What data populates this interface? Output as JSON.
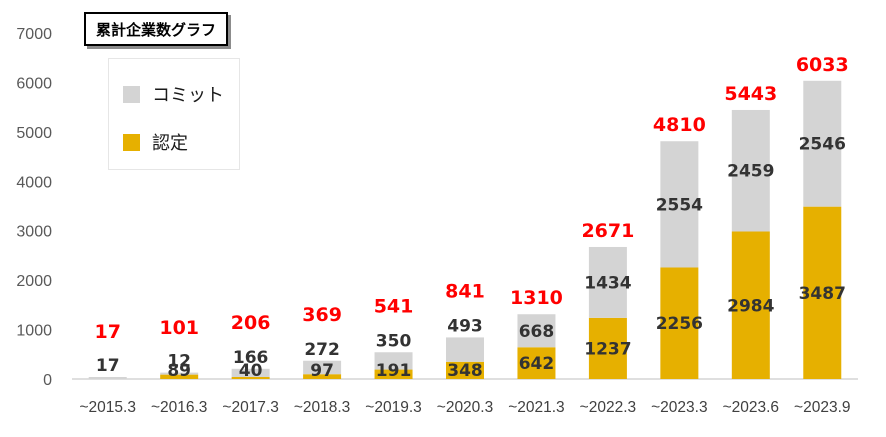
{
  "chart_data": {
    "type": "bar",
    "stacked": true,
    "title": "累計企業数グラフ",
    "categories": [
      "~2015.3",
      "~2016.3",
      "~2017.3",
      "~2018.3",
      "~2019.3",
      "~2020.3",
      "~2021.3",
      "~2022.3",
      "~2023.3",
      "~2023.6",
      "~2023.9"
    ],
    "series": [
      {
        "name": "認定",
        "color": "#e6b000",
        "values": [
          0,
          89,
          40,
          97,
          191,
          348,
          642,
          1237,
          2256,
          2984,
          3487
        ],
        "labels": [
          "",
          "89",
          "40",
          "97",
          "191",
          "348",
          "642",
          "1237",
          "2256",
          "2984",
          "3487"
        ]
      },
      {
        "name": "コミット",
        "color": "#d4d4d4",
        "values": [
          17,
          12,
          166,
          272,
          350,
          493,
          668,
          1434,
          2554,
          2459,
          2546
        ],
        "labels": [
          "17",
          "12",
          "166",
          "272",
          "350",
          "493",
          "668",
          "1434",
          "2554",
          "2459",
          "2546"
        ]
      }
    ],
    "totals": [
      "17",
      "101",
      "206",
      "369",
      "541",
      "841",
      "1310",
      "2671",
      "4810",
      "5443",
      "6033"
    ],
    "total_color": "#ff0000",
    "ylim": [
      0,
      7000
    ],
    "yticks": [
      "0",
      "1000",
      "2000",
      "3000",
      "4000",
      "5000",
      "6000",
      "7000"
    ],
    "grid": false,
    "legend_position": "top-left",
    "legend": [
      {
        "label": "コミット",
        "color": "#d4d4d4"
      },
      {
        "label": "認定",
        "color": "#e6b000"
      }
    ]
  }
}
